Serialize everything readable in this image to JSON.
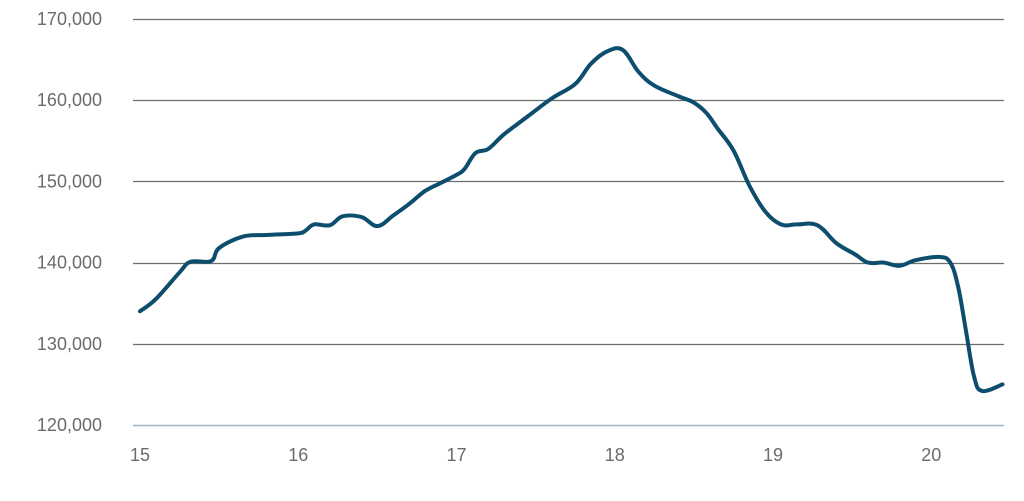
{
  "chart_data": {
    "type": "line",
    "title": "",
    "xlabel": "",
    "ylabel": "",
    "xlim": [
      15,
      20.45
    ],
    "ylim": [
      120000,
      170000
    ],
    "x_ticks": [
      15,
      16,
      17,
      18,
      19,
      20
    ],
    "x_tick_labels": [
      "15",
      "16",
      "17",
      "18",
      "19",
      "20"
    ],
    "y_ticks": [
      120000,
      130000,
      140000,
      150000,
      160000,
      170000
    ],
    "y_tick_labels": [
      "120,000",
      "130,000",
      "140,000",
      "150,000",
      "160,000",
      "170,000"
    ],
    "grid": "horizontal",
    "legend": "none",
    "colors": {
      "line": "#0d4d6e",
      "grid": "#6e6e6e",
      "baseline": "#9fb3c8"
    },
    "series": [
      {
        "x": [
          15.0,
          15.1,
          15.25,
          15.32,
          15.45,
          15.5,
          15.65,
          15.8,
          16.0,
          16.05,
          16.1,
          16.2,
          16.28,
          16.4,
          16.5,
          16.6,
          16.7,
          16.8,
          16.9,
          17.0,
          17.05,
          17.12,
          17.2,
          17.3,
          17.45,
          17.6,
          17.75,
          17.85,
          17.95,
          18.05,
          18.15,
          18.25,
          18.4,
          18.5,
          18.58,
          18.65,
          18.75,
          18.85,
          18.95,
          19.05,
          19.15,
          19.28,
          19.4,
          19.52,
          19.6,
          19.7,
          19.8,
          19.9,
          20.05,
          20.12,
          20.17,
          20.22,
          20.27,
          20.32,
          20.45
        ],
        "y": [
          134000,
          135500,
          138800,
          140100,
          140200,
          141800,
          143200,
          143400,
          143600,
          144000,
          144700,
          144600,
          145700,
          145600,
          144500,
          145800,
          147200,
          148800,
          149800,
          150800,
          151500,
          153500,
          154000,
          155800,
          158000,
          160200,
          162000,
          164500,
          166000,
          166200,
          163500,
          161800,
          160500,
          159700,
          158400,
          156500,
          153800,
          149500,
          146300,
          144700,
          144700,
          144600,
          142400,
          141000,
          140000,
          140000,
          139600,
          140300,
          140700,
          140000,
          137000,
          131500,
          126000,
          124200,
          125000
        ]
      }
    ]
  }
}
